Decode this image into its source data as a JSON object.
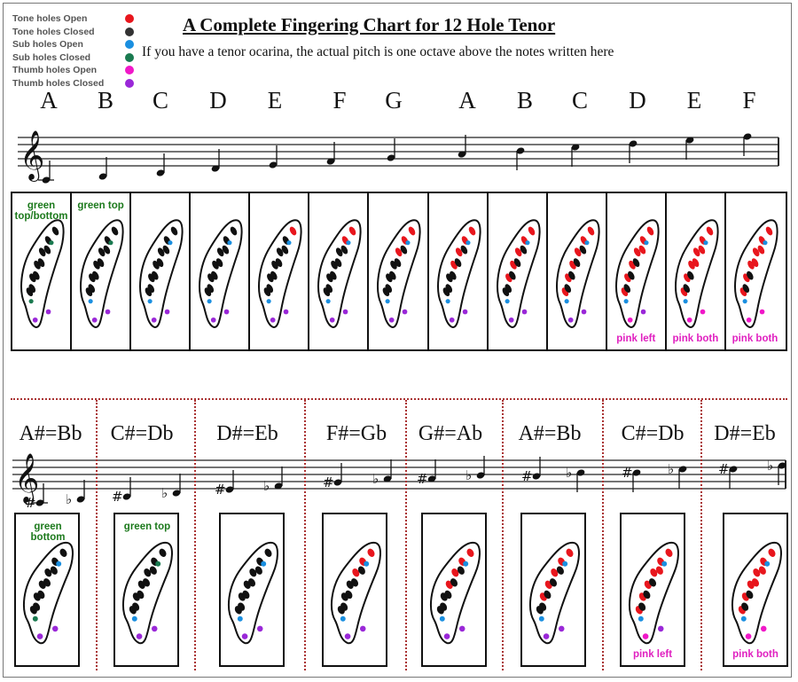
{
  "title": "A Complete Fingering Chart for 12 Hole Tenor",
  "subtitle": "If you have a tenor ocarina, the actual pitch is one octave above the notes written here",
  "legend": [
    {
      "label": "Tone holes Open",
      "color": "#e8161d"
    },
    {
      "label": "Tone holes Closed",
      "color": "#333333"
    },
    {
      "label": "Sub holes Open",
      "color": "#1a8fe0"
    },
    {
      "label": "Sub holes Closed",
      "color": "#1a7a50"
    },
    {
      "label": "Thumb holes Open",
      "color": "#f018c8"
    },
    {
      "label": "Thumb holes Closed",
      "color": "#9a28d8"
    }
  ],
  "natural_notes": [
    "A",
    "B",
    "C",
    "D",
    "E",
    "F",
    "G",
    "A",
    "B",
    "C",
    "D",
    "E",
    "F"
  ],
  "natural_notes_red_count": [
    0,
    0,
    0,
    0,
    1,
    2,
    3,
    4,
    5,
    6,
    7,
    8,
    8
  ],
  "natural_notes_tags": [
    {
      "text": "green top/bottom",
      "color": "green"
    },
    {
      "text": "green top",
      "color": "green"
    },
    {
      "text": "",
      "color": ""
    },
    {
      "text": "",
      "color": ""
    },
    {
      "text": "",
      "color": ""
    },
    {
      "text": "",
      "color": ""
    },
    {
      "text": "",
      "color": ""
    },
    {
      "text": "",
      "color": ""
    },
    {
      "text": "",
      "color": ""
    },
    {
      "text": "",
      "color": ""
    },
    {
      "text": "pink left",
      "color": "pink"
    },
    {
      "text": "pink both",
      "color": "pink"
    },
    {
      "text": "pink both",
      "color": "pink"
    }
  ],
  "sharp_notes": [
    "A#=Bb",
    "C#=Db",
    "D#=Eb",
    "F#=Gb",
    "G#=Ab",
    "A#=Bb",
    "C#=Db",
    "D#=Eb"
  ],
  "sharp_notes_red_count": [
    0,
    0,
    0,
    3,
    4,
    5,
    7,
    8
  ],
  "sharp_notes_tags": [
    {
      "text": "green bottom",
      "color": "green"
    },
    {
      "text": "green top",
      "color": "green"
    },
    {
      "text": "",
      "color": ""
    },
    {
      "text": "",
      "color": ""
    },
    {
      "text": "",
      "color": ""
    },
    {
      "text": "",
      "color": ""
    },
    {
      "text": "pink left",
      "color": "pink"
    },
    {
      "text": "pink both",
      "color": "pink"
    }
  ]
}
